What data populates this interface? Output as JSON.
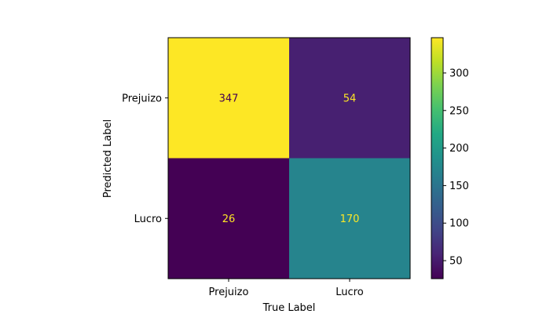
{
  "chart_data": {
    "type": "heatmap",
    "rows": [
      "Prejuizo",
      "Lucro"
    ],
    "columns": [
      "Prejuizo",
      "Lucro"
    ],
    "values": [
      [
        347,
        54
      ],
      [
        26,
        170
      ]
    ],
    "xlabel": "True Label",
    "ylabel": "Predicted Label",
    "colormap": "viridis",
    "colorbar": {
      "vmin": 26,
      "vmax": 347,
      "ticks": [
        50,
        100,
        150,
        200,
        250,
        300
      ]
    },
    "text_colors": {
      "on_dark": "#fde725",
      "on_light": "#440154"
    }
  }
}
